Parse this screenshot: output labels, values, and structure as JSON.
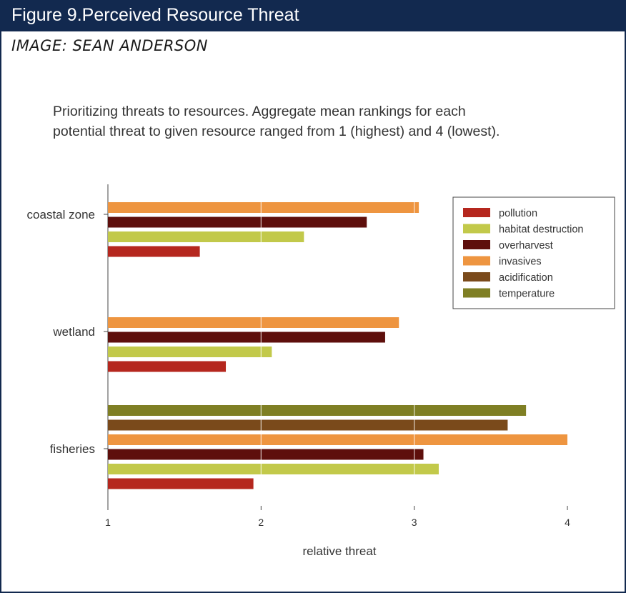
{
  "figure": {
    "title": "Figure 9.Perceived Resource Threat",
    "credit": "IMAGE: SEAN ANDERSON"
  },
  "chart_data": {
    "type": "bar",
    "orientation": "horizontal",
    "caption_line1": "Prioritizing threats to resources. Aggregate mean rankings for each",
    "caption_line2": "potential threat to given resource ranged from 1 (highest) and 4 (lowest).",
    "xlabel": "relative threat",
    "xlim": [
      1,
      4
    ],
    "xticks": [
      "1",
      "2",
      "3",
      "4"
    ],
    "legend_position": "top-right",
    "legend": [
      {
        "name": "pollution",
        "color": "#b5271e"
      },
      {
        "name": "habitat destruction",
        "color": "#c2c94a"
      },
      {
        "name": "overharvest",
        "color": "#5e0f0c"
      },
      {
        "name": "invasives",
        "color": "#ee9540"
      },
      {
        "name": "acidification",
        "color": "#7a4a1b"
      },
      {
        "name": "temperature",
        "color": "#7f7f24"
      }
    ],
    "groups": [
      {
        "category": "coastal zone",
        "bars": [
          {
            "series": "invasives",
            "value": 3.03
          },
          {
            "series": "overharvest",
            "value": 2.69
          },
          {
            "series": "habitat destruction",
            "value": 2.28
          },
          {
            "series": "pollution",
            "value": 1.6
          }
        ]
      },
      {
        "category": "wetland",
        "bars": [
          {
            "series": "invasives",
            "value": 2.9
          },
          {
            "series": "overharvest",
            "value": 2.81
          },
          {
            "series": "habitat destruction",
            "value": 2.07
          },
          {
            "series": "pollution",
            "value": 1.77
          }
        ]
      },
      {
        "category": "fisheries",
        "bars": [
          {
            "series": "temperature",
            "value": 3.73
          },
          {
            "series": "acidification",
            "value": 3.61
          },
          {
            "series": "invasives",
            "value": 4.0
          },
          {
            "series": "overharvest",
            "value": 3.06
          },
          {
            "series": "habitat destruction",
            "value": 3.16
          },
          {
            "series": "pollution",
            "value": 1.95
          }
        ]
      }
    ]
  }
}
